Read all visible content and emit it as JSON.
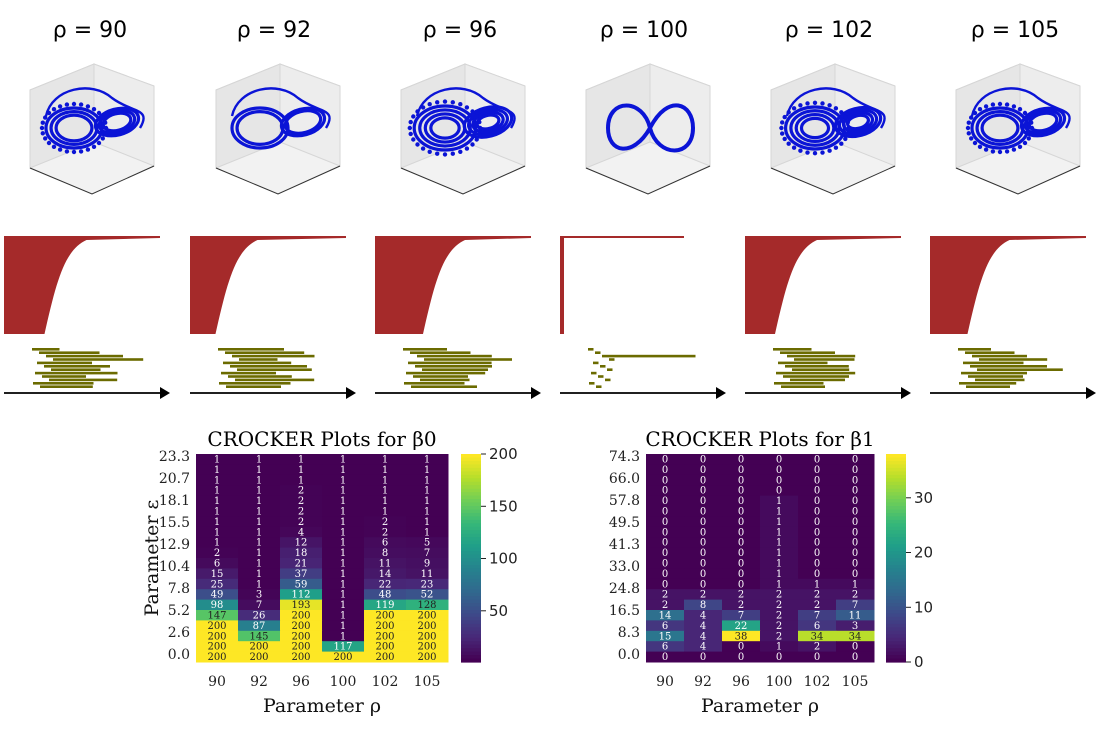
{
  "panel_titles": [
    "ρ = 90",
    "ρ = 92",
    "ρ = 96",
    "ρ = 100",
    "ρ = 102",
    "ρ = 105"
  ],
  "colors": {
    "attractor": "#0b14d6",
    "persistence_h0": "#a52a2a",
    "persistence_h1": "#6b6b00",
    "axis": "#000000",
    "viridis": [
      "#440154",
      "#482878",
      "#3e4989",
      "#31688e",
      "#26828e",
      "#1f9e89",
      "#35b779",
      "#6ece58",
      "#b5de2b",
      "#fde725"
    ]
  },
  "chart_data": [
    {
      "type": "heatmap",
      "title": "CROCKER Plots for β0",
      "xlabel": "Parameter ρ",
      "ylabel": "Parameter ε",
      "x_ticks": [
        "90",
        "92",
        "96",
        "100",
        "102",
        "105"
      ],
      "y_ticks": [
        "23.3",
        "20.7",
        "18.1",
        "15.5",
        "12.9",
        "10.4",
        "7.8",
        "5.2",
        "2.6",
        "0.0"
      ],
      "colorbar_ticks": [
        "200",
        "150",
        "100",
        "50"
      ],
      "colorbar_range": [
        1,
        200
      ],
      "rows": [
        [
          1,
          1,
          1,
          1,
          1,
          1
        ],
        [
          1,
          1,
          1,
          1,
          1,
          1
        ],
        [
          1,
          1,
          1,
          1,
          1,
          1
        ],
        [
          1,
          1,
          2,
          1,
          1,
          1
        ],
        [
          1,
          1,
          2,
          1,
          1,
          1
        ],
        [
          1,
          1,
          2,
          1,
          1,
          1
        ],
        [
          1,
          1,
          2,
          1,
          2,
          1
        ],
        [
          1,
          1,
          4,
          1,
          2,
          1
        ],
        [
          1,
          1,
          12,
          1,
          6,
          5
        ],
        [
          2,
          1,
          18,
          1,
          8,
          7
        ],
        [
          6,
          1,
          21,
          1,
          11,
          9
        ],
        [
          15,
          1,
          37,
          1,
          14,
          11
        ],
        [
          25,
          1,
          59,
          1,
          22,
          23
        ],
        [
          49,
          3,
          112,
          1,
          48,
          52
        ],
        [
          98,
          7,
          193,
          1,
          119,
          128
        ],
        [
          147,
          26,
          200,
          1,
          200,
          200
        ],
        [
          200,
          87,
          200,
          1,
          200,
          200
        ],
        [
          200,
          145,
          200,
          1,
          200,
          200
        ],
        [
          200,
          200,
          200,
          117,
          200,
          200
        ],
        [
          200,
          200,
          200,
          200,
          200,
          200
        ]
      ]
    },
    {
      "type": "heatmap",
      "title": "CROCKER Plots for β1",
      "xlabel": "Parameter ρ",
      "ylabel": "",
      "x_ticks": [
        "90",
        "92",
        "96",
        "100",
        "102",
        "105"
      ],
      "y_ticks": [
        "74.3",
        "66.0",
        "57.8",
        "49.5",
        "41.3",
        "33.0",
        "24.8",
        "16.5",
        "8.3",
        "0.0"
      ],
      "colorbar_ticks": [
        "30",
        "20",
        "10",
        "0"
      ],
      "colorbar_range": [
        0,
        38
      ],
      "rows": [
        [
          0,
          0,
          0,
          0,
          0,
          0
        ],
        [
          0,
          0,
          0,
          0,
          0,
          0
        ],
        [
          0,
          0,
          0,
          0,
          0,
          0
        ],
        [
          0,
          0,
          0,
          0,
          0,
          0
        ],
        [
          0,
          0,
          0,
          1,
          0,
          0
        ],
        [
          0,
          0,
          0,
          1,
          0,
          0
        ],
        [
          0,
          0,
          0,
          1,
          0,
          0
        ],
        [
          0,
          0,
          0,
          1,
          0,
          0
        ],
        [
          0,
          0,
          0,
          1,
          0,
          0
        ],
        [
          0,
          0,
          0,
          1,
          0,
          0
        ],
        [
          0,
          0,
          0,
          1,
          0,
          0
        ],
        [
          0,
          0,
          0,
          1,
          0,
          0
        ],
        [
          0,
          0,
          0,
          1,
          1,
          1
        ],
        [
          2,
          2,
          2,
          2,
          2,
          2
        ],
        [
          2,
          8,
          2,
          2,
          2,
          7
        ],
        [
          14,
          4,
          7,
          2,
          7,
          11
        ],
        [
          6,
          4,
          22,
          2,
          6,
          3
        ],
        [
          15,
          4,
          38,
          2,
          34,
          34
        ],
        [
          6,
          4,
          0,
          1,
          2,
          0
        ],
        [
          0,
          0,
          0,
          0,
          0,
          0
        ]
      ]
    }
  ]
}
